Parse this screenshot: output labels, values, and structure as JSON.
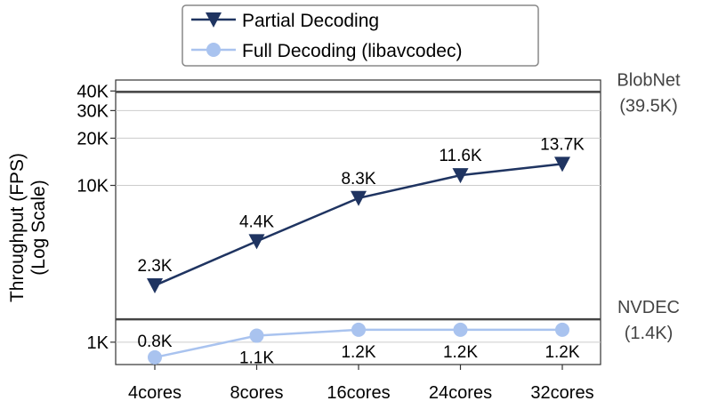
{
  "chart_data": {
    "type": "line",
    "ylabel_line1": "Throughput (FPS)",
    "ylabel_line2": "(Log Scale)",
    "yscale": "log",
    "ylim": [
      720,
      47000
    ],
    "categories": [
      "4cores",
      "8cores",
      "16cores",
      "24cores",
      "32cores"
    ],
    "yticks": [
      {
        "value": 1000,
        "label": "1K"
      },
      {
        "value": 10000,
        "label": "10K"
      },
      {
        "value": 20000,
        "label": "20K"
      },
      {
        "value": 30000,
        "label": "30K"
      },
      {
        "value": 40000,
        "label": "40K"
      }
    ],
    "grid": true,
    "legend_position": "top-center",
    "series": [
      {
        "name": "Partial Decoding",
        "color": "#1f3461",
        "marker": "triangle-down",
        "values": [
          2300,
          4400,
          8300,
          11600,
          13700
        ],
        "labels": [
          "2.3K",
          "4.4K",
          "8.3K",
          "11.6K",
          "13.7K"
        ]
      },
      {
        "name": "Full Decoding (libavcodec)",
        "color": "#a9c3ef",
        "marker": "circle",
        "values": [
          800,
          1100,
          1200,
          1200,
          1200
        ],
        "labels": [
          "0.8K",
          "1.1K",
          "1.2K",
          "1.2K",
          "1.2K"
        ]
      }
    ],
    "reference_lines": [
      {
        "value": 39500,
        "label_line1": "BlobNet",
        "label_line2": "(39.5K)",
        "color": "#444444"
      },
      {
        "value": 1400,
        "label_line1": "NVDEC",
        "label_line2": "(1.4K)",
        "color": "#444444"
      }
    ]
  }
}
